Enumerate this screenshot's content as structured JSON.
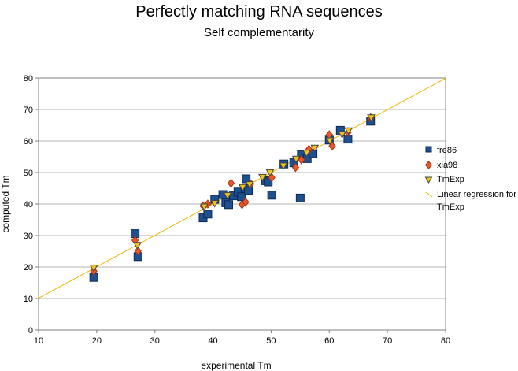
{
  "chart_data": {
    "type": "scatter",
    "title": "Perfectly matching RNA sequences",
    "subtitle": "Self complementarity",
    "xlabel": "experimental Tm",
    "ylabel": "computed Tm",
    "xlim": [
      10,
      80
    ],
    "ylim": [
      0,
      80
    ],
    "xticks": [
      10,
      20,
      30,
      40,
      50,
      60,
      70,
      80
    ],
    "yticks": [
      0,
      10,
      20,
      30,
      40,
      50,
      60,
      70,
      80
    ],
    "grid": "horizontal",
    "legend_position": "right",
    "series": [
      {
        "name": "fre86",
        "marker": "square",
        "color": "#1f4f8f",
        "points": [
          [
            19.5,
            16.7
          ],
          [
            26.6,
            30.6
          ],
          [
            27.1,
            23.3
          ],
          [
            38.3,
            35.6
          ],
          [
            39.1,
            36.8
          ],
          [
            40.3,
            41.5
          ],
          [
            41.7,
            43.0
          ],
          [
            42.2,
            40.4
          ],
          [
            42.7,
            39.8
          ],
          [
            43.5,
            42.6
          ],
          [
            44.3,
            43.8
          ],
          [
            44.9,
            42.3
          ],
          [
            45.5,
            44.9
          ],
          [
            45.7,
            48.0
          ],
          [
            46.1,
            44.3
          ],
          [
            49.0,
            47.4
          ],
          [
            49.5,
            47.0
          ],
          [
            50.1,
            42.8
          ],
          [
            52.2,
            52.7
          ],
          [
            53.9,
            53.1
          ],
          [
            55.0,
            41.9
          ],
          [
            55.2,
            55.7
          ],
          [
            56.2,
            54.4
          ],
          [
            57.2,
            56.0
          ],
          [
            60.0,
            60.3
          ],
          [
            61.9,
            63.4
          ],
          [
            63.2,
            60.6
          ],
          [
            67.1,
            66.3
          ]
        ]
      },
      {
        "name": "xia98",
        "marker": "diamond",
        "color": "#e8582a",
        "points": [
          [
            19.5,
            18.7
          ],
          [
            26.6,
            28.5
          ],
          [
            27.1,
            25.1
          ],
          [
            38.3,
            39.4
          ],
          [
            39.1,
            40.0
          ],
          [
            43.1,
            46.6
          ],
          [
            45.0,
            39.8
          ],
          [
            45.6,
            40.6
          ],
          [
            46.5,
            46.4
          ],
          [
            50.1,
            48.4
          ],
          [
            54.2,
            51.6
          ],
          [
            55.2,
            54.0
          ],
          [
            56.5,
            57.4
          ],
          [
            60.0,
            62.0
          ],
          [
            60.5,
            58.4
          ],
          [
            63.2,
            62.7
          ],
          [
            67.1,
            67.4
          ]
        ]
      },
      {
        "name": "TmExp",
        "marker": "triangle-down",
        "color": "#f0c419",
        "points": [
          [
            19.5,
            19.6
          ],
          [
            27.0,
            26.8
          ],
          [
            38.5,
            39.0
          ],
          [
            40.3,
            40.1
          ],
          [
            42.5,
            42.6
          ],
          [
            45.1,
            45.2
          ],
          [
            46.3,
            46.1
          ],
          [
            48.5,
            48.4
          ],
          [
            49.8,
            49.9
          ],
          [
            52.1,
            52.0
          ],
          [
            54.3,
            54.2
          ],
          [
            56.1,
            56.1
          ],
          [
            57.5,
            57.7
          ],
          [
            60.1,
            60.0
          ],
          [
            62.2,
            62.0
          ],
          [
            63.3,
            63.2
          ],
          [
            67.2,
            67.3
          ]
        ]
      },
      {
        "name": "Linear regression for TmExp",
        "type": "line",
        "color": "#f0b400",
        "points": [
          [
            10,
            10.1
          ],
          [
            80,
            79.9
          ]
        ]
      }
    ]
  },
  "legend": [
    {
      "label": "fre86"
    },
    {
      "label": "xia98"
    },
    {
      "label": "TmExp"
    },
    {
      "label_line1": "Linear regression for",
      "label_line2": "TmExp"
    }
  ]
}
